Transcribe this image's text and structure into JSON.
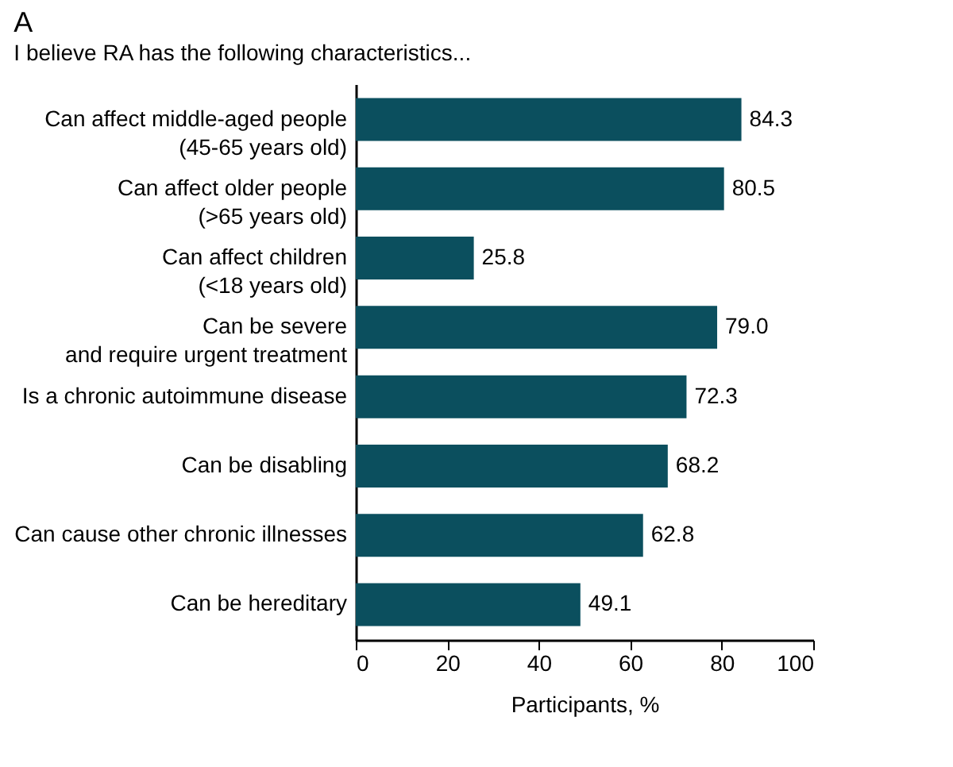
{
  "chart_data": {
    "type": "bar",
    "orientation": "horizontal",
    "title": "A",
    "subtitle": "I believe RA has the following characteristics...",
    "xlabel": "Participants, %",
    "categories": [
      "Can affect middle-aged people\n(45-65 years old)",
      "Can affect older people\n(>65 years old)",
      "Can affect children\n(<18 years old)",
      "Can be severe\nand require urgent treatment",
      "Is a chronic autoimmune disease",
      "Can be disabling",
      "Can cause other chronic illnesses",
      "Can be hereditary"
    ],
    "values": [
      84.3,
      80.5,
      25.8,
      79.0,
      72.3,
      68.2,
      62.8,
      49.1
    ],
    "value_labels": [
      "84.3",
      "80.5",
      "25.8",
      "79.0",
      "72.3",
      "68.2",
      "62.8",
      "49.1"
    ],
    "color": "#0b4f5e",
    "xlim": [
      0,
      100
    ],
    "xticks": [
      0,
      20,
      40,
      60,
      80,
      100
    ],
    "grid": false
  }
}
